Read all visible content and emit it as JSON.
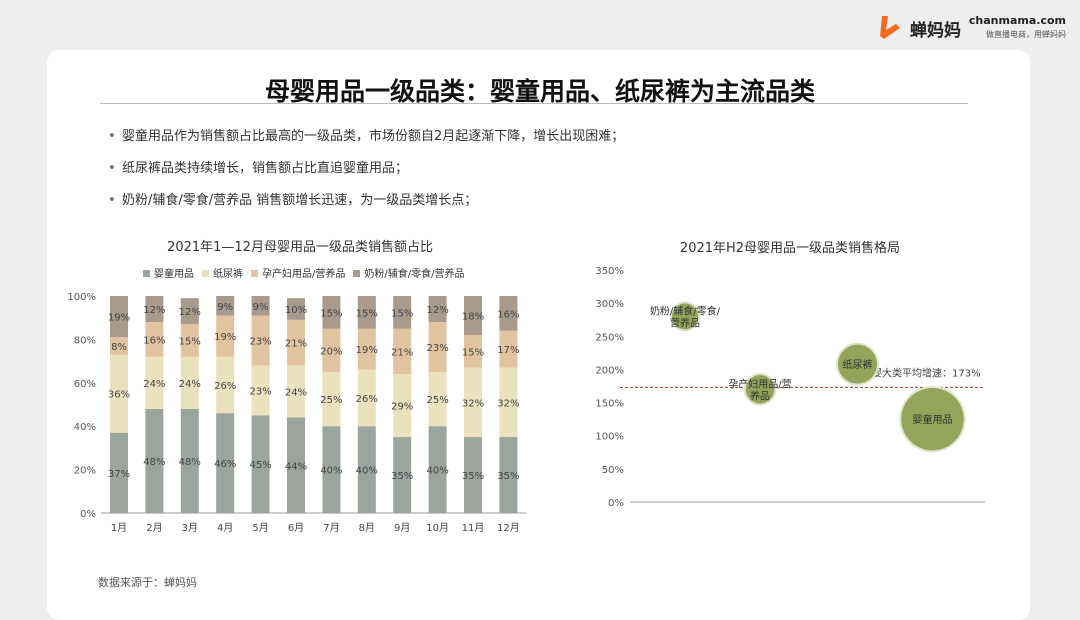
{
  "brand": {
    "name": "蝉妈妈",
    "site_url": "chanmama.com",
    "slogan": "做直播电商，用蝉妈妈",
    "accent_color": "#f26b21"
  },
  "page": {
    "title": "母婴用品一级品类：婴童用品、纸尿裤为主流品类",
    "bullets": [
      "婴童用品作为销售额占比最高的一级品类，市场份额自2月起逐渐下降，增长出现困难；",
      "纸尿裤品类持续增长，销售额占比直追婴童用品；",
      "奶粉/辅食/零食/营养品 销售额增长迅速，为一级品类增长点；"
    ],
    "source": "数据来源于：蝉妈妈"
  },
  "chart_data": [
    {
      "type": "bar",
      "stacked": true,
      "title": "2021年1—12月母婴用品一级品类销售额占比",
      "legend_position": "top",
      "categories": [
        "1月",
        "2月",
        "3月",
        "4月",
        "5月",
        "6月",
        "7月",
        "8月",
        "9月",
        "10月",
        "11月",
        "12月"
      ],
      "series": [
        {
          "name": "婴童用品",
          "color": "#9aa59d",
          "values": [
            37,
            48,
            48,
            46,
            45,
            44,
            40,
            40,
            35,
            40,
            35,
            35
          ]
        },
        {
          "name": "纸尿裤",
          "color": "#ece1bd",
          "values": [
            36,
            24,
            24,
            26,
            23,
            24,
            25,
            26,
            29,
            25,
            32,
            32
          ]
        },
        {
          "name": "孕产妇用品/营养品",
          "color": "#e2c39f",
          "values": [
            8,
            16,
            15,
            19,
            23,
            21,
            20,
            19,
            21,
            23,
            15,
            17
          ]
        },
        {
          "name": "奶粉/辅食/零食/营养品",
          "color": "#a99a8c",
          "values": [
            19,
            12,
            12,
            9,
            9,
            10,
            15,
            15,
            15,
            12,
            18,
            16
          ]
        }
      ],
      "y_ticks": [
        "0%",
        "20%",
        "40%",
        "60%",
        "80%",
        "100%"
      ],
      "ylim": [
        0,
        100
      ],
      "grid": false
    },
    {
      "type": "scatter",
      "subtype": "bubble",
      "title": "2021年H2母婴用品一级品类销售格局",
      "y_ticks": [
        "0%",
        "50%",
        "100%",
        "150%",
        "200%",
        "250%",
        "300%",
        "350%"
      ],
      "ylim": [
        0,
        350
      ],
      "bubble_color": "#94a45a",
      "points": [
        {
          "label": "奶粉/辅食/零食/营养品",
          "label_lines": [
            "奶粉/辅食/零食/",
            "营养品"
          ],
          "x": 1,
          "y": 280,
          "size": 1
        },
        {
          "label": "孕产妇用品/营养品",
          "label_lines": [
            "孕产妇用品/营",
            "养品"
          ],
          "x": 2,
          "y": 170,
          "size": 1.1
        },
        {
          "label": "纸尿裤",
          "label_lines": [
            "纸尿裤"
          ],
          "x": 3.3,
          "y": 208,
          "size": 1.5
        },
        {
          "label": "婴童用品",
          "label_lines": [
            "婴童用品"
          ],
          "x": 4.3,
          "y": 125,
          "size": 2.4
        }
      ],
      "reference_line": {
        "label": "母婴大类平均增速：173%",
        "y": 173,
        "color": "#a33a32"
      }
    }
  ]
}
